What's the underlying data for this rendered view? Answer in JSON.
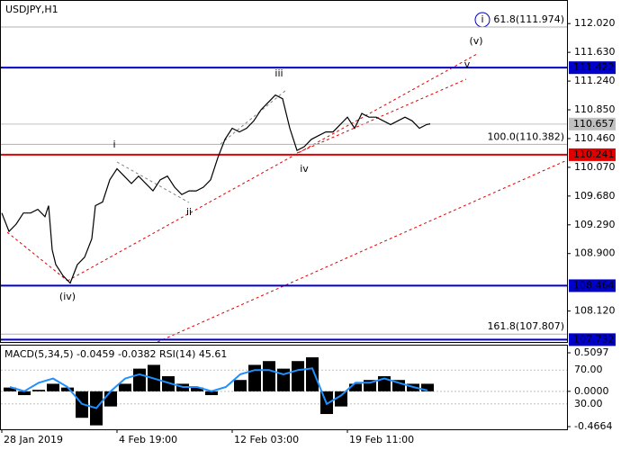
{
  "chart_data": [
    {
      "type": "line",
      "title": "USDJPY,H1",
      "color": "#000000",
      "x": [
        0,
        2,
        4,
        6,
        8,
        10,
        12,
        13,
        14,
        15,
        17,
        19,
        21,
        23,
        25,
        26,
        28,
        30,
        32,
        34,
        36,
        38,
        40,
        42,
        44,
        46,
        48,
        50,
        52,
        54,
        56,
        58,
        60,
        62,
        64,
        66,
        68,
        70,
        72,
        74,
        76,
        78,
        80,
        82,
        84,
        86,
        88,
        90,
        92,
        94,
        96,
        98,
        100,
        102,
        104,
        106,
        108,
        110,
        112,
        114,
        116,
        118,
        119
      ],
      "values": [
        109.45,
        109.2,
        109.3,
        109.45,
        109.45,
        109.5,
        109.4,
        109.55,
        108.95,
        108.75,
        108.6,
        108.5,
        108.75,
        108.85,
        109.1,
        109.55,
        109.6,
        109.9,
        110.05,
        109.95,
        109.85,
        109.95,
        109.85,
        109.75,
        109.9,
        109.95,
        109.8,
        109.7,
        109.75,
        109.75,
        109.8,
        109.9,
        110.2,
        110.45,
        110.6,
        110.55,
        110.6,
        110.7,
        110.85,
        110.95,
        111.05,
        111.0,
        110.6,
        110.3,
        110.35,
        110.45,
        110.5,
        110.55,
        110.55,
        110.65,
        110.75,
        110.6,
        110.8,
        110.75,
        110.75,
        110.7,
        110.65,
        110.7,
        110.75,
        110.7,
        110.6,
        110.65,
        110.66
      ],
      "xlim": [
        0,
        157
      ],
      "xticks": [
        {
          "value": 0,
          "label": "28 Jan 2019"
        },
        {
          "value": 32,
          "label": "4 Feb 19:00"
        },
        {
          "value": 64,
          "label": "12 Feb 03:00"
        },
        {
          "value": 96,
          "label": "19 Feb 11:00"
        }
      ],
      "ylim": [
        107.7,
        112.34
      ],
      "yticks": [
        {
          "value": 112.02,
          "label": "112.020"
        },
        {
          "value": 111.63,
          "label": "111.630"
        },
        {
          "value": 111.24,
          "label": "111.240"
        },
        {
          "value": 110.85,
          "label": "110.850"
        },
        {
          "value": 110.46,
          "label": "110.460"
        },
        {
          "value": 110.07,
          "label": "110.070"
        },
        {
          "value": 109.68,
          "label": "109.680"
        },
        {
          "value": 109.29,
          "label": "109.290"
        },
        {
          "value": 108.9,
          "label": "108.900"
        },
        {
          "value": 108.12,
          "label": "108.120"
        }
      ],
      "levels": [
        {
          "value": 111.422,
          "color": "#0000cc"
        },
        {
          "value": 110.241,
          "color": "#e00000"
        },
        {
          "value": 108.464,
          "color": "#0000cc"
        },
        {
          "value": 107.732,
          "color": "#0000cc"
        },
        {
          "value": 110.657,
          "color": "#c0c0c0"
        }
      ],
      "fib_levels": [
        {
          "value": 111.974,
          "label": "61.8(111.974)"
        },
        {
          "value": 110.382,
          "label": "100.0(110.382)"
        },
        {
          "value": 107.807,
          "label": "161.8(107.807)"
        }
      ],
      "annotations": [
        "i",
        "ii",
        "iii",
        "iv",
        "v",
        "(iv)",
        "(v)",
        "i"
      ]
    },
    {
      "type": "bar",
      "title": "MACD(5,34,5) -0.0459 -0.0382 RSI(14) 45.61",
      "color": "#000000",
      "values": [
        0.05,
        -0.05,
        0.02,
        0.1,
        0.05,
        -0.35,
        -0.45,
        -0.2,
        0.1,
        0.3,
        0.35,
        0.2,
        0.1,
        0.05,
        -0.05,
        0.0,
        0.15,
        0.35,
        0.4,
        0.3,
        0.4,
        0.45,
        -0.3,
        -0.2,
        0.1,
        0.15,
        0.2,
        0.15,
        0.1,
        0.1
      ],
      "ylim": [
        -0.4664,
        0.5097
      ],
      "yticks": [
        {
          "value": 0.5097,
          "label": "0.5097"
        },
        {
          "value": 0,
          "label": "0.0000"
        },
        {
          "value": -0.4664,
          "label": "-0.4664"
        }
      ],
      "rsi": {
        "color": "#1e90ff",
        "values": [
          50,
          45,
          55,
          60,
          50,
          30,
          25,
          45,
          60,
          65,
          60,
          55,
          50,
          50,
          45,
          50,
          65,
          70,
          70,
          65,
          70,
          72,
          30,
          40,
          55,
          55,
          60,
          55,
          50,
          46
        ],
        "ylim": [
          0,
          100
        ],
        "yticks": [
          {
            "value": 70,
            "label": "70.00"
          },
          {
            "value": 30,
            "label": "30.00"
          }
        ]
      }
    }
  ]
}
